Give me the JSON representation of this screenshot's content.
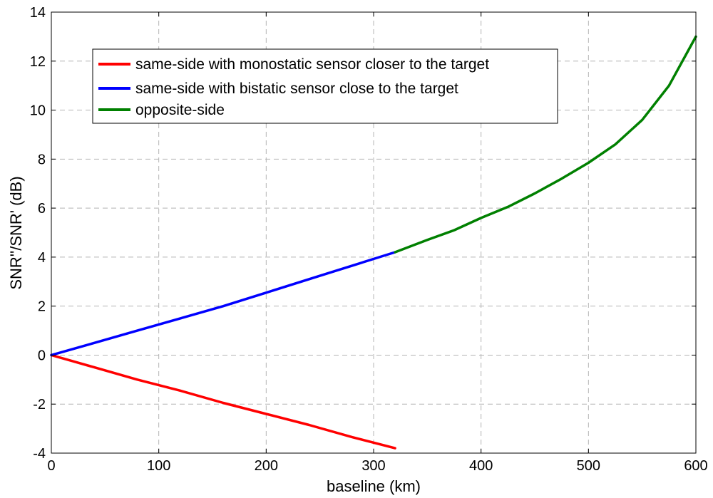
{
  "chart_data": {
    "type": "line",
    "title": "",
    "xlabel": "baseline (km)",
    "ylabel": "SNR''/SNR' (dB)",
    "xlim": [
      0,
      600
    ],
    "ylim": [
      -4,
      14
    ],
    "xticks": [
      0,
      100,
      200,
      300,
      400,
      500,
      600
    ],
    "yticks": [
      -4,
      -2,
      0,
      2,
      4,
      6,
      8,
      10,
      12,
      14
    ],
    "grid": true,
    "legend_position": "top-left",
    "series": [
      {
        "name": "same-side with monostatic sensor closer to the target",
        "color": "#ff0000",
        "x": [
          0,
          40,
          80,
          120,
          160,
          200,
          240,
          280,
          320
        ],
        "y": [
          0,
          -0.5,
          -1.0,
          -1.45,
          -1.95,
          -2.4,
          -2.85,
          -3.35,
          -3.8
        ]
      },
      {
        "name": "same-side with bistatic sensor close to the target",
        "color": "#0000ff",
        "x": [
          0,
          40,
          80,
          120,
          160,
          200,
          240,
          280,
          320
        ],
        "y": [
          0,
          0.5,
          1.0,
          1.5,
          2.0,
          2.55,
          3.1,
          3.65,
          4.2
        ]
      },
      {
        "name": "opposite-side",
        "color": "#008000",
        "x": [
          320,
          350,
          375,
          400,
          425,
          450,
          475,
          500,
          525,
          550,
          575,
          600
        ],
        "y": [
          4.2,
          4.7,
          5.1,
          5.6,
          6.05,
          6.6,
          7.2,
          7.85,
          8.6,
          9.6,
          11.0,
          13.0
        ]
      }
    ]
  }
}
